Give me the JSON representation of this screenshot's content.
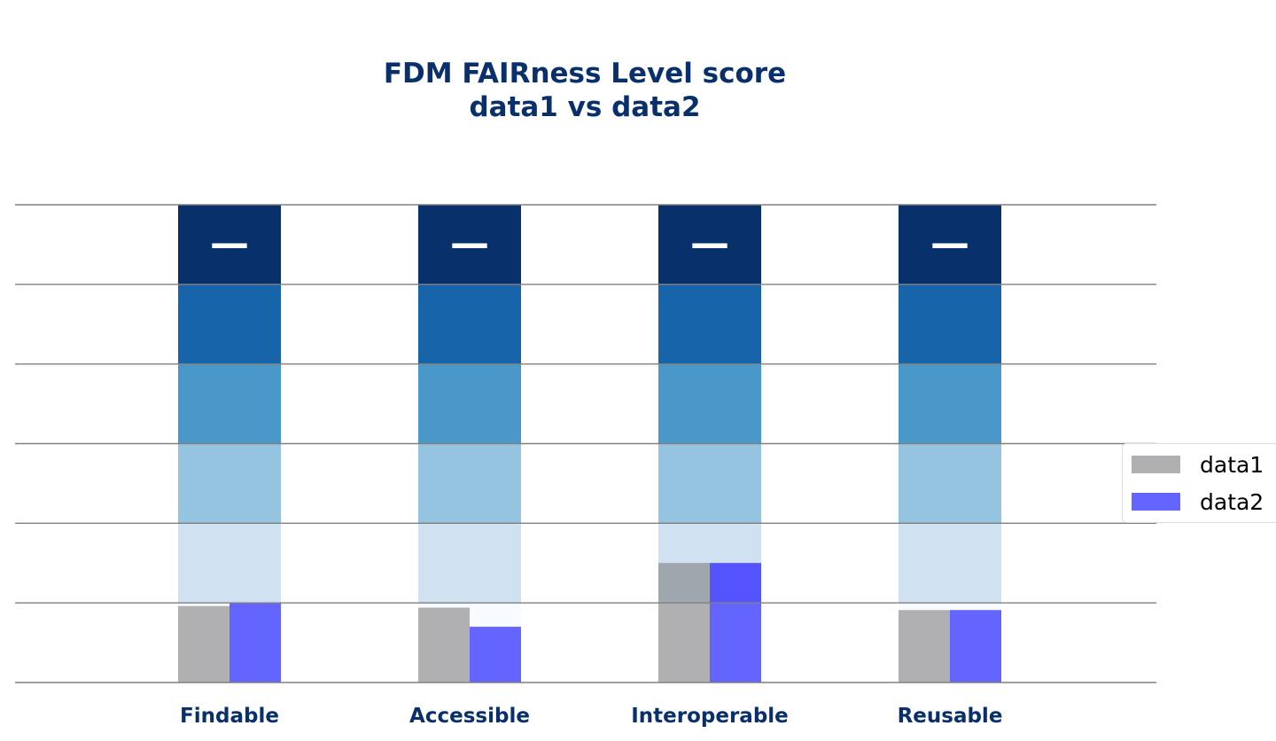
{
  "chart_data": {
    "type": "bar",
    "title": "FDM FAIRness Level score",
    "subtitle": "data1 vs data2",
    "categories": [
      "Findable",
      "Accessible",
      "Interoperable",
      "Reusable"
    ],
    "levels": 6,
    "ylim": [
      0,
      6
    ],
    "level_colors": [
      "#f7fbff",
      "#d0e1f2",
      "#94c4df",
      "#4a98c9",
      "#1764ab",
      "#08306b"
    ],
    "top_marker": "—",
    "series": [
      {
        "name": "data1",
        "color": "#b0b0b2",
        "overlay_color": "#a0a6ae",
        "values": [
          0.96,
          0.94,
          1.5,
          0.91
        ]
      },
      {
        "name": "data2",
        "color": "#6464ff",
        "overlay_color": "#5555ff",
        "values": [
          1.0,
          0.7,
          1.5,
          0.91
        ]
      }
    ],
    "grid": true,
    "legend": "right"
  }
}
